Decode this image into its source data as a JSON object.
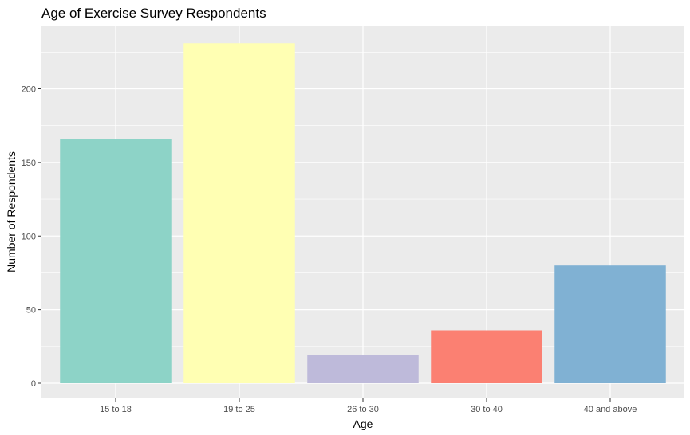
{
  "chart_data": {
    "type": "bar",
    "title": "Age of Exercise Survey Respondents",
    "xlabel": "Age",
    "ylabel": "Number of Respondents",
    "categories": [
      "15 to 18",
      "19 to 25",
      "26 to 30",
      "30 to 40",
      "40 and above"
    ],
    "values": [
      166,
      231,
      19,
      36,
      80
    ],
    "colors": [
      "#8DD3C7",
      "#FFFFB3",
      "#BEBADA",
      "#FB8072",
      "#80B1D3"
    ],
    "ylim": [
      0,
      243
    ],
    "yticks": [
      0,
      50,
      100,
      150,
      200
    ],
    "grid": true,
    "legend": "none",
    "panel_background": "#EBEBEB",
    "grid_color": "#FFFFFF"
  }
}
